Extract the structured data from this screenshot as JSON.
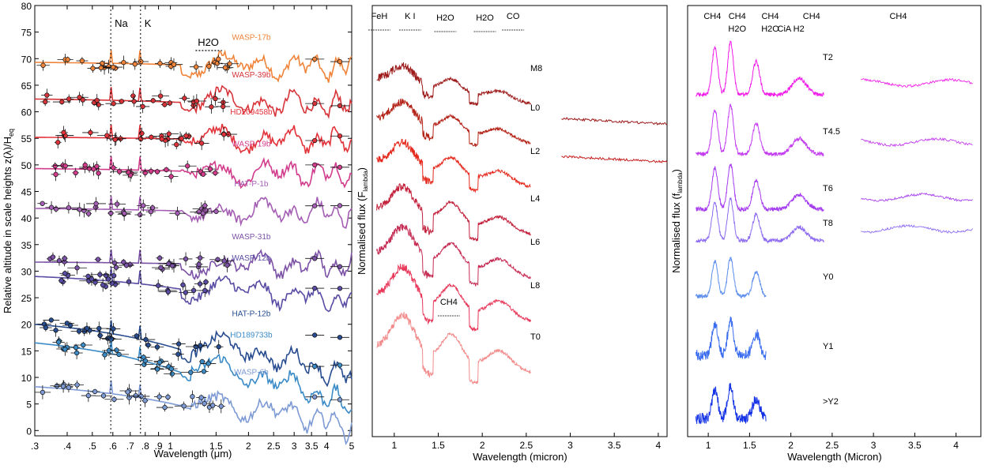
{
  "chart_data": [
    {
      "type": "line",
      "panel": "planets",
      "xlabel": "Wavelength  (μm)",
      "ylabel": "Relative altitude in scale heights  z(λ)/H",
      "ylabel_sub": "eq",
      "x_tick_labels": [
        ".3",
        ".4",
        ".5",
        ".6",
        ".7",
        ".8",
        ".9",
        "1",
        "1.5",
        "2",
        "2.5",
        "3",
        "3.5",
        "4",
        "5"
      ],
      "x_ticks": [
        0.3,
        0.4,
        0.5,
        0.6,
        0.7,
        0.8,
        0.9,
        1.0,
        1.5,
        2.0,
        2.5,
        3.0,
        3.5,
        4.0,
        5.0
      ],
      "xlim": [
        0.3,
        5.0
      ],
      "ylim": [
        -1,
        80
      ],
      "y_ticks": [
        0,
        5,
        10,
        15,
        20,
        25,
        30,
        35,
        40,
        45,
        50,
        55,
        60,
        65,
        70,
        75,
        80
      ],
      "annotations": [
        {
          "text": "Na",
          "x": 0.589
        },
        {
          "text": "K",
          "x": 0.767
        },
        {
          "text": "H2O",
          "x": 1.4
        }
      ],
      "series": [
        {
          "name": "WASP-17b",
          "color": "#f0843a",
          "offset": 69,
          "slope": 0.6
        },
        {
          "name": "WASP-39b",
          "color": "#d7343a",
          "offset": 62,
          "slope": 0.8
        },
        {
          "name": "HD209458b",
          "color": "#e2323a",
          "offset": 55,
          "slope": 0.4
        },
        {
          "name": "WASP-19b",
          "color": "#d23c8c",
          "offset": 49,
          "slope": 0.6
        },
        {
          "name": "HAT-P-1b",
          "color": "#a45eb4",
          "offset": 41.5,
          "slope": 0.6
        },
        {
          "name": "WASP-31b",
          "color": "#7c52a6",
          "offset": 31.5,
          "slope": 0.4
        },
        {
          "name": "WASP-12b",
          "color": "#584ca4",
          "offset": 27.5,
          "slope": 3.0
        },
        {
          "name": "HAT-P-12b",
          "color": "#274c8f",
          "offset": 17,
          "slope": 6.0
        },
        {
          "name": "HD189733b",
          "color": "#3b8bc7",
          "offset": 13,
          "slope": 7.0
        },
        {
          "name": "WASP-6b",
          "color": "#7d9ad4",
          "offset": 6,
          "slope": 4.5
        }
      ]
    },
    {
      "type": "line",
      "panel": "M-L dwarfs",
      "xlabel": "Wavelength (micron)",
      "ylabel": "Normalised flux (F",
      "ylabel_sub": "lambda",
      "ylabel_close": ")",
      "xlim": [
        0.75,
        4.1
      ],
      "x_ticks": [
        1,
        1.5,
        2,
        2.5,
        3,
        3.5,
        4
      ],
      "x_tick_labels": [
        "1",
        "1.5",
        "2",
        "2.5",
        "3",
        "3.5",
        "4"
      ],
      "features": [
        "FeH",
        "K I",
        "H2O",
        "H2O",
        "CO",
        "CH4"
      ],
      "series": [
        {
          "name": "M8",
          "color": "#9e1b1b"
        },
        {
          "name": "L0",
          "color": "#b42318"
        },
        {
          "name": "L2",
          "color": "#e52a1e"
        },
        {
          "name": "L4",
          "color": "#c3203b"
        },
        {
          "name": "L6",
          "color": "#c62d55"
        },
        {
          "name": "L8",
          "color": "#e8385a"
        },
        {
          "name": "T0",
          "color": "#f28b8b"
        }
      ]
    },
    {
      "type": "line",
      "panel": "T-Y dwarfs",
      "xlabel": "Wavelength (Micron)",
      "ylabel": "Normalised flux (f",
      "ylabel_sub": "lambda",
      "ylabel_close": ")",
      "xlim": [
        0.75,
        4.3
      ],
      "x_ticks": [
        1,
        1.5,
        2,
        2.5,
        3,
        3.5,
        4
      ],
      "x_tick_labels": [
        "1",
        "1.5",
        "2",
        "2.5",
        "3",
        "3.5",
        "4"
      ],
      "features": [
        "CH4",
        "CH4",
        "H2O",
        "CH4",
        "H2O",
        "CiA H2",
        "CH4",
        "CH4"
      ],
      "series": [
        {
          "name": "T2",
          "color": "#f01ee8"
        },
        {
          "name": "T4.5",
          "color": "#c33cf0"
        },
        {
          "name": "T6",
          "color": "#a63cf0"
        },
        {
          "name": "T8",
          "color": "#8e6cf0"
        },
        {
          "name": "Y0",
          "color": "#5a8cec"
        },
        {
          "name": "Y1",
          "color": "#3a6cf0"
        },
        {
          "name": ">Y2",
          "color": "#1432e6"
        }
      ]
    }
  ]
}
